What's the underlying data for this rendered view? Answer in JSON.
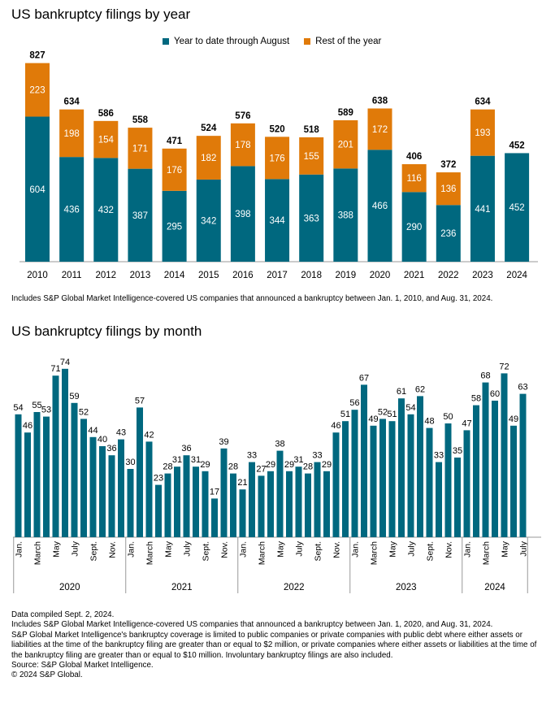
{
  "colors": {
    "teal": "#00687f",
    "orange": "#e07a09",
    "axis": "#999999"
  },
  "chart_data": [
    {
      "type": "bar",
      "title": "US bankruptcy filings by year",
      "stacked": true,
      "categories": [
        "2010",
        "2011",
        "2012",
        "2013",
        "2014",
        "2015",
        "2016",
        "2017",
        "2018",
        "2019",
        "2020",
        "2021",
        "2022",
        "2023",
        "2024"
      ],
      "series": [
        {
          "name": "Year to date through August",
          "values": [
            604,
            436,
            432,
            387,
            295,
            342,
            398,
            344,
            363,
            388,
            466,
            290,
            236,
            441,
            452
          ]
        },
        {
          "name": "Rest of the year",
          "values": [
            223,
            198,
            154,
            171,
            176,
            182,
            178,
            176,
            155,
            201,
            172,
            116,
            136,
            193,
            null
          ]
        }
      ],
      "totals": [
        827,
        634,
        586,
        558,
        471,
        524,
        576,
        520,
        518,
        589,
        638,
        406,
        372,
        634,
        452
      ],
      "legend": "top"
    },
    {
      "type": "bar",
      "title": "US bankruptcy filings by month",
      "values": [
        54,
        46,
        55,
        53,
        71,
        74,
        59,
        52,
        44,
        40,
        36,
        43,
        30,
        57,
        42,
        23,
        28,
        31,
        36,
        31,
        29,
        17,
        39,
        28,
        21,
        33,
        27,
        29,
        38,
        29,
        31,
        28,
        33,
        29,
        46,
        51,
        56,
        67,
        49,
        52,
        51,
        61,
        54,
        62,
        48,
        33,
        50,
        35,
        47,
        58,
        68,
        60,
        72,
        49,
        63
      ],
      "month_tick_labels": [
        "Jan.",
        "March",
        "May",
        "July",
        "Sept.",
        "Nov."
      ],
      "years": [
        "2020",
        "2021",
        "2022",
        "2023",
        "2024"
      ]
    }
  ],
  "notes": {
    "chart1": "Includes S&P Global Market Intelligence-covered US companies that announced a bankruptcy between Jan. 1, 2010, and Aug. 31, 2024.",
    "footer_lines": [
      "Data compiled Sept. 2, 2024.",
      "Includes S&P Global Market Intelligence-covered US companies that announced a bankruptcy between Jan. 1, 2020, and Aug. 31, 2024.",
      "S&P Global Market Intelligence's bankruptcy coverage is limited to public companies or private companies with public debt where either assets or liabilities at the time of the bankruptcy filing are greater than or equal to $2 million, or private companies where either assets or liabilities at the time of the bankruptcy filing are greater than or equal to $10 million. Involuntary bankruptcy filings are also included.",
      "Source: S&P Global Market Intelligence.",
      "© 2024 S&P Global."
    ]
  }
}
